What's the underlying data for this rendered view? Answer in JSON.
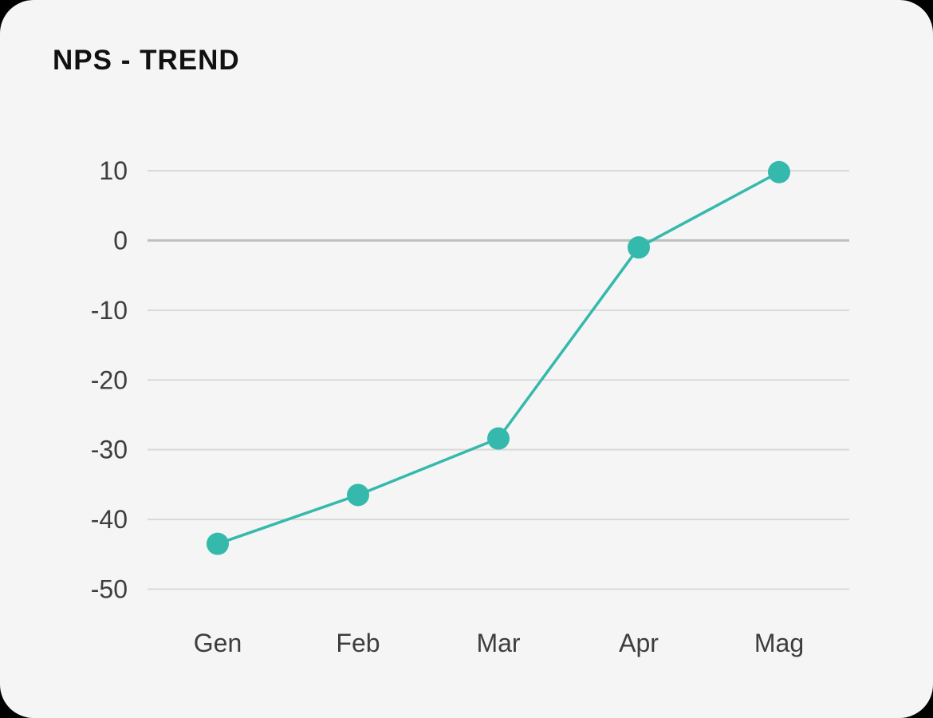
{
  "page": {
    "background": "#000000",
    "card_background": "#f5f5f5"
  },
  "header": {
    "title": "NPS - TREND"
  },
  "chart_data": {
    "type": "line",
    "title": "NPS - TREND",
    "categories": [
      "Gen",
      "Feb",
      "Mar",
      "Apr",
      "Mag"
    ],
    "values": [
      -43.5,
      -36.5,
      -28.4,
      -1,
      9.8
    ],
    "series_name": "NPS",
    "xlabel": "",
    "ylabel": "",
    "ylim": [
      -50,
      10
    ],
    "yticks": [
      10,
      0,
      -10,
      -20,
      -30,
      -40,
      -50
    ],
    "grid": true,
    "zero_line_emphasized": true,
    "legend_position": "none",
    "colors": {
      "line": "#35b9ac",
      "point": "#35b9ac",
      "gridline": "#d9d9d9",
      "zero_gridline": "#bfbfbf",
      "axis_label": "#3d3d3d",
      "title": "#111111"
    }
  }
}
